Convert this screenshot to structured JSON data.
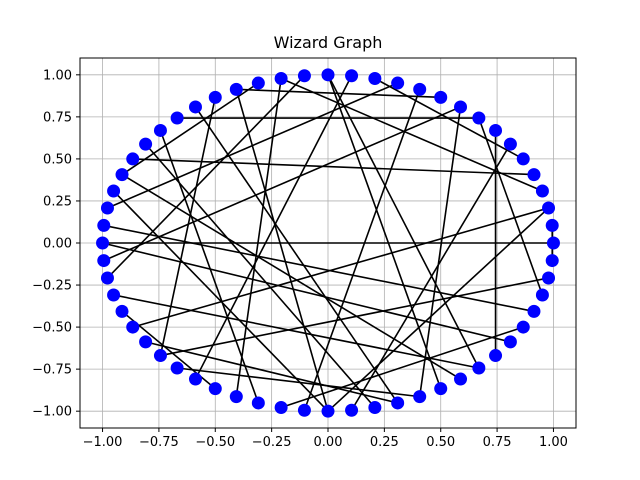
{
  "chart_data": {
    "type": "network",
    "title": "Wizard Graph",
    "xlim": [
      -1.1,
      1.1
    ],
    "ylim": [
      -1.1,
      1.1
    ],
    "x_ticks": [
      -1.0,
      -0.75,
      -0.5,
      -0.25,
      0.0,
      0.25,
      0.5,
      0.75,
      1.0
    ],
    "y_ticks": [
      -1.0,
      -0.75,
      -0.5,
      -0.25,
      0.0,
      0.25,
      0.5,
      0.75,
      1.0
    ],
    "x_tick_labels": [
      "−1.00",
      "−0.75",
      "−0.50",
      "−0.25",
      "0.00",
      "0.25",
      "0.50",
      "0.75",
      "1.00"
    ],
    "y_tick_labels": [
      "−1.00",
      "−0.75",
      "−0.50",
      "−0.25",
      "0.00",
      "0.25",
      "0.50",
      "0.75",
      "1.00"
    ],
    "grid": true,
    "node_count": 60,
    "node_color": "#0000ff",
    "edge_color": "#000000",
    "edges": [
      [
        0,
        30
      ],
      [
        1,
        59
      ],
      [
        2,
        35
      ],
      [
        3,
        17
      ],
      [
        4,
        25
      ],
      [
        5,
        13
      ],
      [
        6,
        46
      ],
      [
        7,
        53
      ],
      [
        8,
        22
      ],
      [
        9,
        31
      ],
      [
        10,
        19
      ],
      [
        11,
        44
      ],
      [
        12,
        28
      ],
      [
        14,
        39
      ],
      [
        15,
        50
      ],
      [
        16,
        32
      ],
      [
        17,
        41
      ],
      [
        18,
        26
      ],
      [
        20,
        37
      ],
      [
        21,
        48
      ],
      [
        23,
        42
      ],
      [
        24,
        47
      ],
      [
        26,
        51
      ],
      [
        27,
        45
      ],
      [
        29,
        56
      ],
      [
        33,
        52
      ],
      [
        34,
        40
      ],
      [
        36,
        48
      ],
      [
        38,
        49
      ],
      [
        43,
        55
      ],
      [
        45,
        19
      ],
      [
        52,
        15
      ],
      [
        57,
        8
      ],
      [
        54,
        30
      ],
      [
        58,
        37
      ],
      [
        9,
        49
      ],
      [
        2,
        45
      ]
    ]
  }
}
